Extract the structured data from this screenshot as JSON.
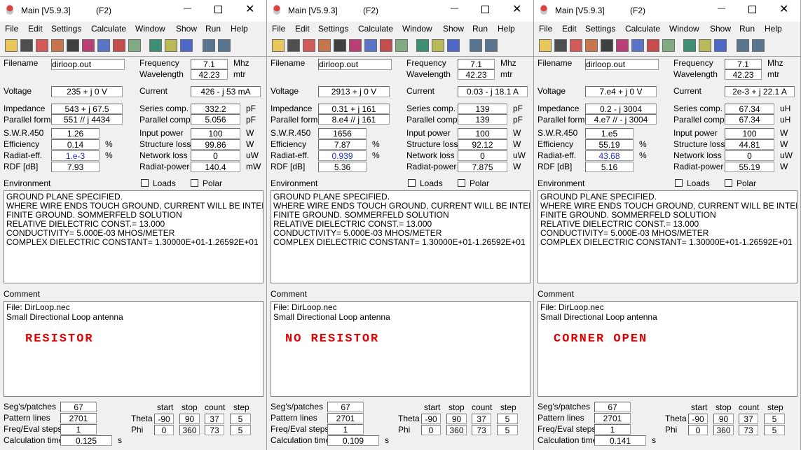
{
  "labels": {
    "filename": "Filename",
    "frequency": "Frequency",
    "wavelength": "Wavelength",
    "voltage": "Voltage",
    "current": "Current",
    "impedance": "Impedance",
    "series_comp": "Series comp.",
    "parallel_form": "Parallel form",
    "parallel_comp": "Parallel comp.",
    "swr": "S.W.R.450",
    "input_power": "Input power",
    "efficiency": "Efficiency",
    "structure_loss": "Structure loss",
    "radiat_eff": "Radiat-eff.",
    "network_loss": "Network loss",
    "rdf": "RDF [dB]",
    "radiat_power": "Radiat-power",
    "environment": "Environment",
    "loads": "Loads",
    "polar": "Polar",
    "comment": "Comment",
    "segs": "Seg's/patches",
    "pattern": "Pattern lines",
    "freq_steps": "Freq/Eval steps",
    "calc_time": "Calculation time",
    "start": "start",
    "stop": "stop",
    "count": "count",
    "step": "step",
    "theta": "Theta",
    "phi": "Phi"
  },
  "menu": [
    "File",
    "Edit",
    "Settings",
    "Calculate",
    "Window",
    "Show",
    "Run",
    "Help"
  ],
  "windows": [
    {
      "title": "Main [V5.9.3]",
      "shortcut": "(F2)",
      "filename": "dirloop.out",
      "frequency": "7.1",
      "freq_unit": "Mhz",
      "wavelength": "42.23",
      "wl_unit": "mtr",
      "voltage": "235 + j 0 V",
      "current": "426 - j 53 mA",
      "impedance": "543 + j 67.5",
      "series_comp": "332.2",
      "series_unit": "pF",
      "parallel_form": "551 // j 4434",
      "parallel_comp": "5.056",
      "parallel_unit": "pF",
      "swr": "1.26",
      "input_power": "100",
      "ip_unit": "W",
      "efficiency": "0.14",
      "eff_unit": "%",
      "structure_loss": "99.86",
      "sl_unit": "W",
      "radiat_eff": "1.e-3",
      "re_unit": "%",
      "network_loss": "0",
      "nl_unit": "uW",
      "rdf": "7.93",
      "radiat_power": "140.4",
      "rp_unit": "mW",
      "environment": [
        "GROUND PLANE SPECIFIED.",
        "WHERE WIRE ENDS TOUCH GROUND, CURRENT WILL BE INTERPOLA",
        "FINITE GROUND.  SOMMERFELD SOLUTION",
        "RELATIVE DIELECTRIC CONST.= 13.000",
        "CONDUCTIVITY= 5.000E-03 MHOS/METER",
        "COMPLEX DIELECTRIC CONSTANT= 1.30000E+01-1.26592E+01"
      ],
      "comment": [
        "File: DirLoop.nec",
        "Small Directional Loop antenna"
      ],
      "note": "RESISTOR",
      "segs": "67",
      "pattern": "2701",
      "freq_steps": "1",
      "calc_time": "0.125",
      "time_unit": "s",
      "theta": [
        -90,
        90,
        37,
        5
      ],
      "phi": [
        0,
        360,
        73,
        5
      ]
    },
    {
      "title": "Main [V5.9.3]",
      "shortcut": "(F2)",
      "filename": "dirloop.out",
      "frequency": "7.1",
      "freq_unit": "Mhz",
      "wavelength": "42.23",
      "wl_unit": "mtr",
      "voltage": "2913 + j 0 V",
      "current": "0.03 - j 18.1 A",
      "impedance": "0.31 + j 161",
      "series_comp": "139",
      "series_unit": "pF",
      "parallel_form": "8.e4 // j 161",
      "parallel_comp": "139",
      "parallel_unit": "pF",
      "swr": "1656",
      "input_power": "100",
      "ip_unit": "W",
      "efficiency": "7.87",
      "eff_unit": "%",
      "structure_loss": "92.12",
      "sl_unit": "W",
      "radiat_eff": "0.939",
      "re_unit": "%",
      "network_loss": "0",
      "nl_unit": "uW",
      "rdf": "5.36",
      "radiat_power": "7.875",
      "rp_unit": "W",
      "environment": [
        "GROUND PLANE SPECIFIED.",
        "WHERE WIRE ENDS TOUCH GROUND, CURRENT WILL BE INTERPOLA",
        "FINITE GROUND.  SOMMERFELD SOLUTION",
        "RELATIVE DIELECTRIC CONST.= 13.000",
        "CONDUCTIVITY= 5.000E-03 MHOS/METER",
        "COMPLEX DIELECTRIC CONSTANT= 1.30000E+01-1.26592E+01"
      ],
      "comment": [
        "File: DirLoop.nec",
        "Small Directional Loop antenna"
      ],
      "note": "NO RESISTOR",
      "segs": "67",
      "pattern": "2701",
      "freq_steps": "1",
      "calc_time": "0.109",
      "time_unit": "s",
      "theta": [
        -90,
        90,
        37,
        5
      ],
      "phi": [
        0,
        360,
        73,
        5
      ]
    },
    {
      "title": "Main [V5.9.3]",
      "shortcut": "(F2)",
      "filename": "dirloop.out",
      "frequency": "7.1",
      "freq_unit": "Mhz",
      "wavelength": "42.23",
      "wl_unit": "mtr",
      "voltage": "7.e4 + j 0 V",
      "current": "2e-3 + j 22.1 A",
      "impedance": "0.2 - j 3004",
      "series_comp": "67.34",
      "series_unit": "uH",
      "parallel_form": "4.e7 // - j 3004",
      "parallel_comp": "67.34",
      "parallel_unit": "uH",
      "swr": "1.e5",
      "input_power": "100",
      "ip_unit": "W",
      "efficiency": "55.19",
      "eff_unit": "%",
      "structure_loss": "44.81",
      "sl_unit": "W",
      "radiat_eff": "43.68",
      "re_unit": "%",
      "network_loss": "0",
      "nl_unit": "uW",
      "rdf": "5.16",
      "radiat_power": "55.19",
      "rp_unit": "W",
      "environment": [
        "GROUND PLANE SPECIFIED.",
        "WHERE WIRE ENDS TOUCH GROUND, CURRENT WILL BE INTERPOLA",
        "FINITE GROUND.  SOMMERFELD SOLUTION",
        "RELATIVE DIELECTRIC CONST.= 13.000",
        "CONDUCTIVITY= 5.000E-03 MHOS/METER",
        "COMPLEX DIELECTRIC CONSTANT= 1.30000E+01-1.26592E+01"
      ],
      "comment": [
        "File: DirLoop.nec",
        "Small Directional Loop antenna"
      ],
      "note": "CORNER OPEN",
      "segs": "67",
      "pattern": "2701",
      "freq_steps": "1",
      "calc_time": "0.141",
      "time_unit": "s",
      "theta": [
        -90,
        90,
        37,
        5
      ],
      "phi": [
        0,
        360,
        73,
        5
      ]
    }
  ]
}
